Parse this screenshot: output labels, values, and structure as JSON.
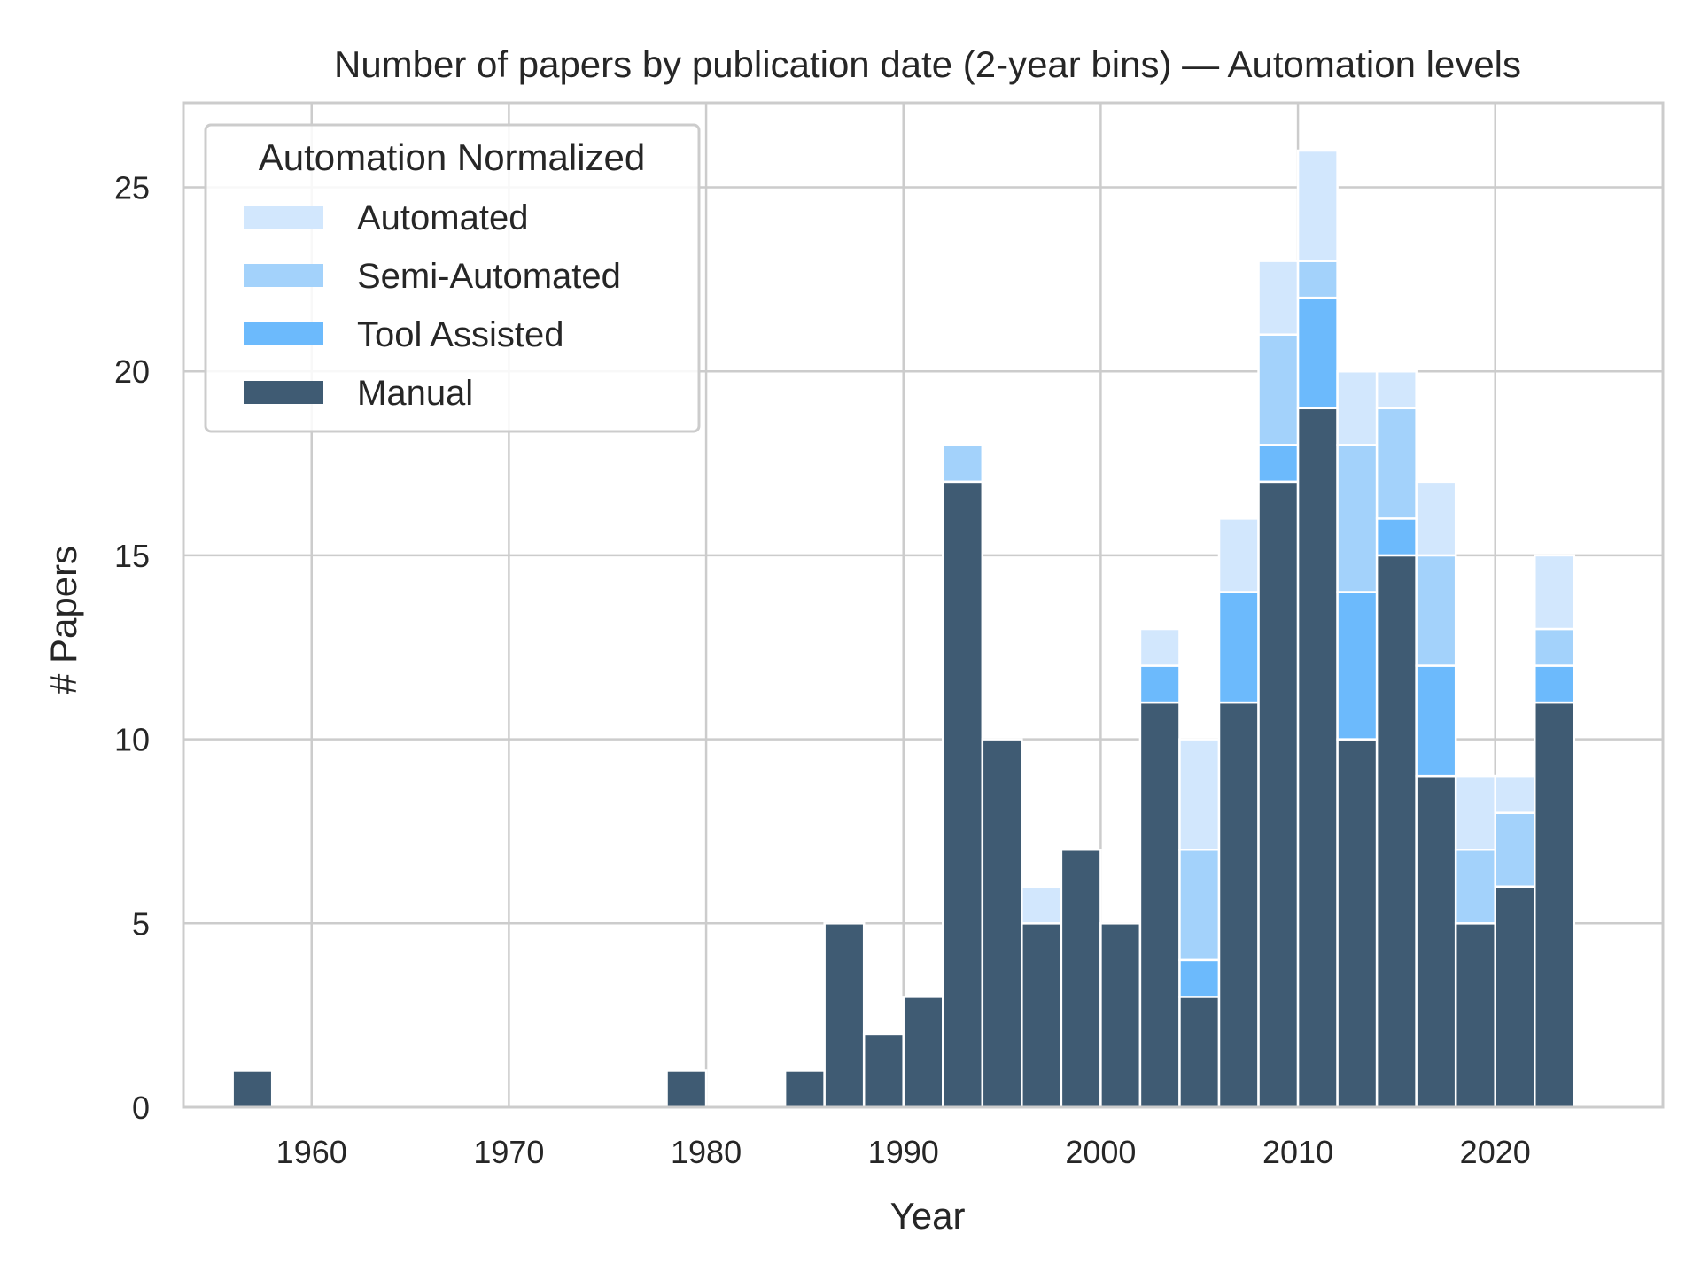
{
  "chart_data": {
    "type": "bar",
    "stacked": true,
    "title": "Number of papers by publication date (2-year bins) — Automation levels",
    "xlabel": "Year",
    "ylabel": "# Papers",
    "xlim": [
      1953.5,
      2028.5
    ],
    "ylim": [
      0,
      27.3
    ],
    "grid": true,
    "bin_width": 2,
    "x_ticks": [
      1960,
      1970,
      1980,
      1990,
      2000,
      2010,
      2020
    ],
    "y_ticks": [
      0,
      5,
      10,
      15,
      20,
      25
    ],
    "bins": [
      1957,
      1979,
      1985,
      1987,
      1989,
      1991,
      1993,
      1995,
      1997,
      1999,
      2001,
      2003,
      2005,
      2007,
      2009,
      2011,
      2013,
      2015,
      2017,
      2019,
      2021,
      2023
    ],
    "series": [
      {
        "name": "Manual",
        "color": "#3f5b73",
        "values": [
          1,
          1,
          1,
          5,
          2,
          3,
          17,
          10,
          5,
          7,
          5,
          11,
          3,
          11,
          17,
          19,
          10,
          15,
          9,
          5,
          6,
          11
        ]
      },
      {
        "name": "Tool Assisted",
        "color": "#6cbafc",
        "values": [
          0,
          0,
          0,
          0,
          0,
          0,
          0,
          0,
          0,
          0,
          0,
          1,
          1,
          3,
          1,
          3,
          4,
          1,
          3,
          0,
          0,
          1
        ]
      },
      {
        "name": "Semi-Automated",
        "color": "#a3d2fb",
        "values": [
          0,
          0,
          0,
          0,
          0,
          0,
          1,
          0,
          0,
          0,
          0,
          0,
          3,
          0,
          3,
          1,
          4,
          3,
          3,
          2,
          2,
          1
        ]
      },
      {
        "name": "Automated",
        "color": "#d2e7fd",
        "values": [
          0,
          0,
          0,
          0,
          0,
          0,
          0,
          0,
          1,
          0,
          0,
          1,
          3,
          2,
          2,
          3,
          2,
          1,
          2,
          2,
          1,
          2
        ]
      }
    ],
    "legend": {
      "title": "Automation Normalized",
      "placement": "top-left",
      "entries": [
        "Automated",
        "Semi-Automated",
        "Tool Assisted",
        "Manual"
      ]
    }
  }
}
